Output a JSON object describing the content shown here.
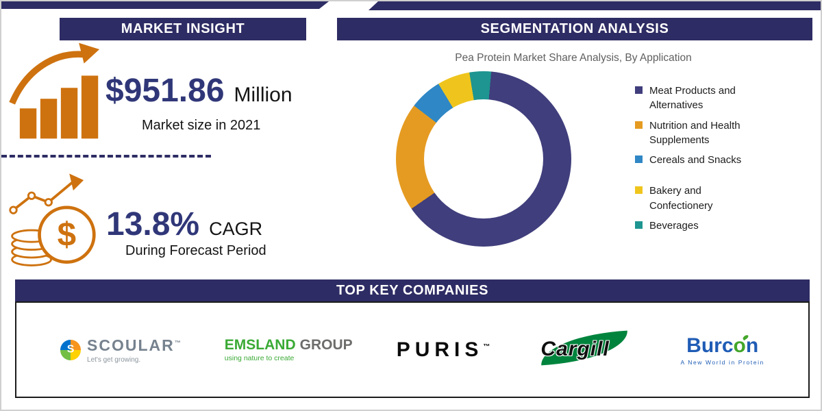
{
  "colors": {
    "banner_navy": "#2E2C64",
    "accent_navy": "#303778",
    "accent_orange": "#CE720F"
  },
  "market_insight": {
    "header": "MARKET INSIGHT",
    "market_size_value": "$951.86",
    "market_size_unit": "Million",
    "market_size_caption": "Market size in 2021",
    "cagr_value": "13.8%",
    "cagr_label": "CAGR",
    "cagr_caption": "During Forecast Period",
    "dollar_icon_glyph": "$"
  },
  "segmentation": {
    "header": "SEGMENTATION ANALYSIS"
  },
  "chart_data": {
    "type": "pie",
    "donut": true,
    "title": "Pea Protein Market Share Analysis, By Application",
    "categories": [
      "Meat Products and Alternatives",
      "Nutrition and Health Supplements",
      "Cereals and Snacks",
      "Bakery and Confectionery",
      "Beverages"
    ],
    "values": [
      64,
      20,
      6,
      6,
      4
    ],
    "colors": [
      "#403E7C",
      "#E59B21",
      "#2F87C5",
      "#EFC51D",
      "#1E9590"
    ],
    "start_angle_deg": 5,
    "legend_position": "right",
    "legend_gap_before": [
      3
    ]
  },
  "companies": {
    "header": "TOP KEY COMPANIES",
    "scoular": {
      "name": "SCOULAR",
      "tm": "™",
      "s_glyph": "S",
      "tagline": "Let's get growing."
    },
    "emsland": {
      "name1": "EMSLAND",
      "name2": "GROUP",
      "tagline": "using nature to create"
    },
    "puris": {
      "name": "PURIS",
      "tm": "™"
    },
    "cargill": {
      "name": "Cargill"
    },
    "burcon": {
      "p1": "Burc",
      "p2": "o",
      "p3": "n",
      "tagline": "A New World in Protein"
    }
  }
}
